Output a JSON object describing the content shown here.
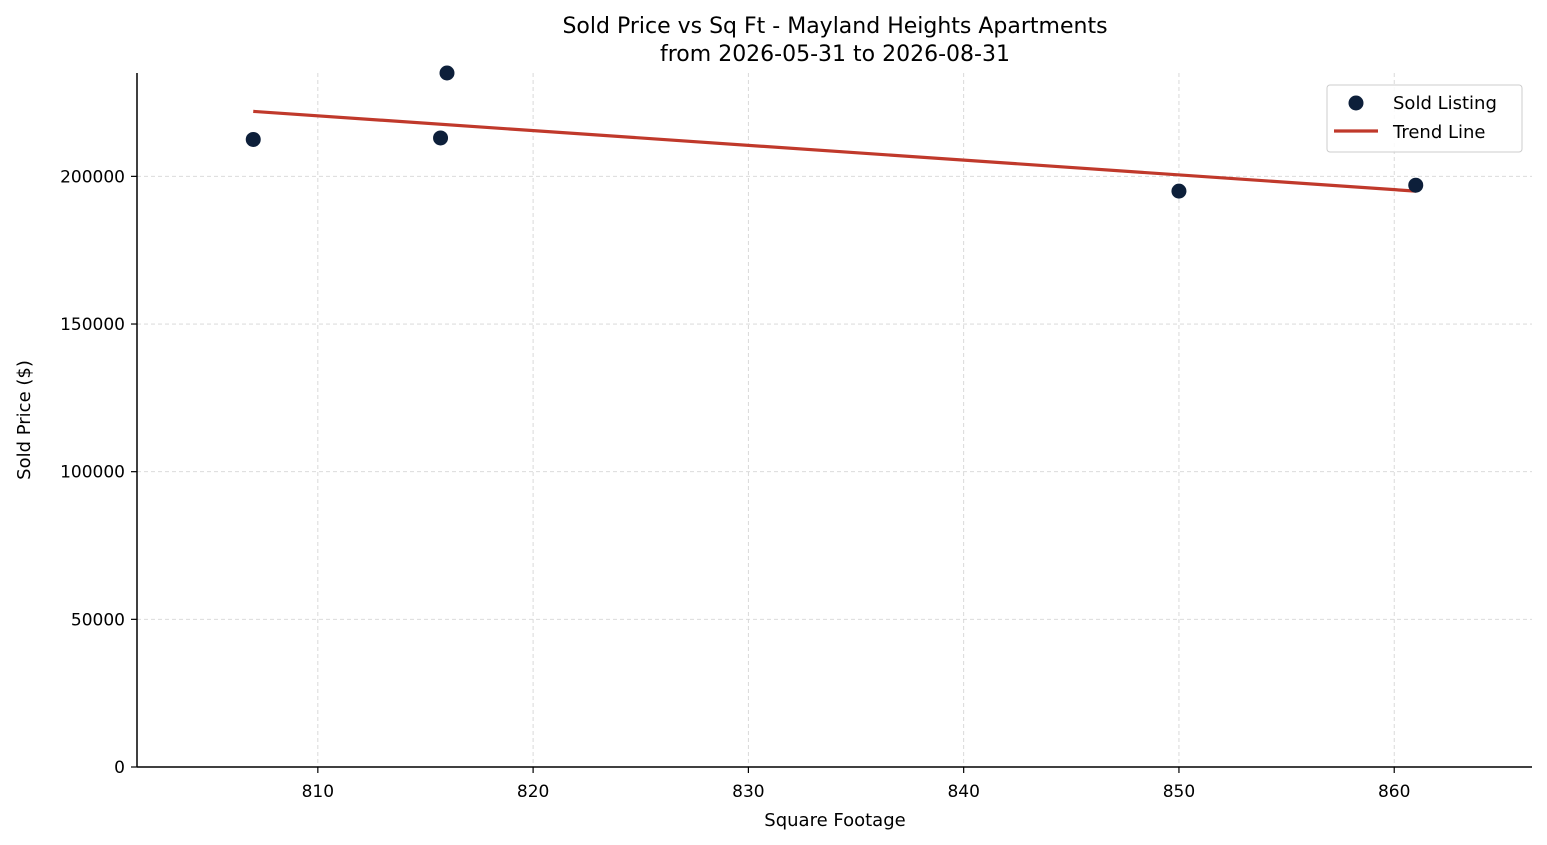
{
  "chart_data": {
    "type": "scatter",
    "title": "Sold Price vs Sq Ft - Mayland Heights Apartments",
    "subtitle": "from 2026-05-31 to 2026-08-31",
    "xlabel": "Square Footage",
    "ylabel": "Sold Price ($)",
    "xlim": [
      801.6,
      866.4
    ],
    "ylim": [
      0,
      235000
    ],
    "x_ticks": [
      810,
      820,
      830,
      840,
      850,
      860
    ],
    "y_ticks": [
      0,
      50000,
      100000,
      150000,
      200000
    ],
    "x_tick_labels": [
      "810",
      "820",
      "830",
      "840",
      "850",
      "860"
    ],
    "y_tick_labels": [
      "0",
      "50000",
      "100000",
      "150000",
      "200000"
    ],
    "grid": true,
    "legend_position": "top-right",
    "series": [
      {
        "name": "Sold Listing",
        "kind": "scatter",
        "color": "#0d1f3a",
        "points": [
          {
            "x": 807,
            "y": 212500
          },
          {
            "x": 815.7,
            "y": 213000
          },
          {
            "x": 816,
            "y": 235000
          },
          {
            "x": 850,
            "y": 195000
          },
          {
            "x": 861,
            "y": 197000
          }
        ]
      },
      {
        "name": "Trend Line",
        "kind": "line",
        "color": "#c0392b",
        "points": [
          {
            "x": 807,
            "y": 222000
          },
          {
            "x": 861,
            "y": 195000
          }
        ]
      }
    ]
  }
}
